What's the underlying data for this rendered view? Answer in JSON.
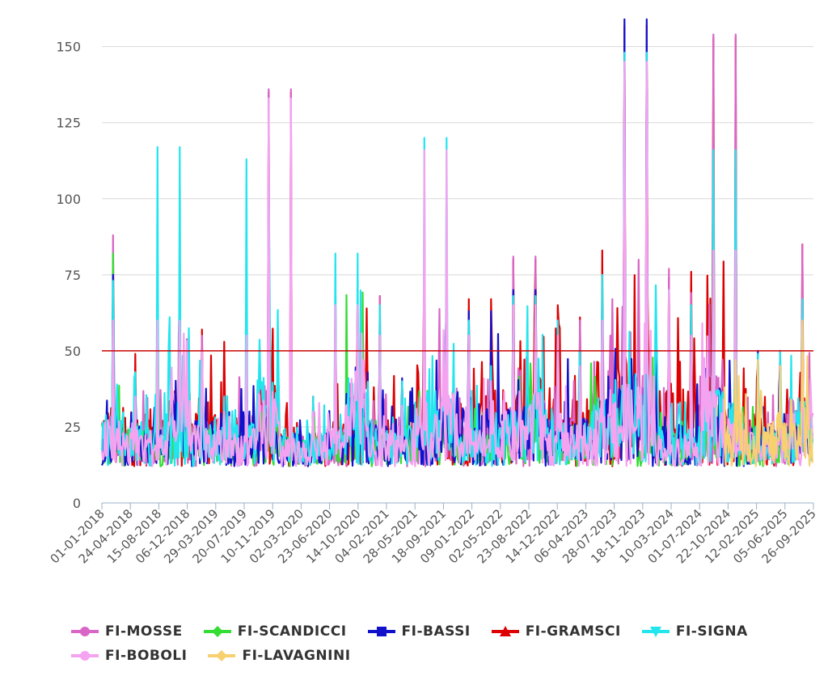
{
  "chart_data": {
    "type": "line",
    "title": "",
    "xlabel": "",
    "ylabel": "",
    "ylim": [
      0,
      160
    ],
    "yticks": [
      0,
      25,
      50,
      75,
      100,
      125,
      150
    ],
    "threshold": {
      "value": 50,
      "color": "#cc0000"
    },
    "x_tick_labels": [
      "01-01-2018",
      "24-04-2018",
      "15-08-2018",
      "06-12-2018",
      "29-03-2019",
      "20-07-2019",
      "10-11-2019",
      "02-03-2020",
      "23-06-2020",
      "14-10-2020",
      "04-02-2021",
      "28-05-2021",
      "18-09-2021",
      "09-01-2022",
      "02-05-2022",
      "23-08-2022",
      "14-12-2022",
      "06-04-2023",
      "28-07-2023",
      "18-11-2023",
      "10-03-2024",
      "01-07-2024",
      "22-10-2024",
      "12-02-2025",
      "05-06-2025",
      "26-09-2025"
    ],
    "period_months": [
      "2018-01",
      "2018-04",
      "2018-07",
      "2018-10",
      "2019-01",
      "2019-04",
      "2019-07",
      "2019-10",
      "2020-01",
      "2020-04",
      "2020-07",
      "2020-10",
      "2021-01",
      "2021-04",
      "2021-07",
      "2021-10",
      "2022-01",
      "2022-04",
      "2022-07",
      "2022-10",
      "2023-01",
      "2023-04",
      "2023-07",
      "2023-10",
      "2024-01",
      "2024-04",
      "2024-07",
      "2024-10",
      "2025-01",
      "2025-04",
      "2025-07",
      "2025-10",
      "2025-12"
    ],
    "series": [
      {
        "name": "FI-MOSSE",
        "color": "#d966c6",
        "values": [
          88,
          40,
          30,
          70,
          55,
          35,
          30,
          60,
          136,
          25,
          30,
          69,
          68,
          25,
          35,
          81,
          60,
          30,
          45,
          81,
          60,
          35,
          60,
          67,
          155,
          77,
          30,
          69,
          154,
          40,
          30,
          50,
          85
        ]
      },
      {
        "name": "FI-SCANDICCI",
        "color": "#33dd33",
        "values": [
          82,
          35,
          28,
          70,
          45,
          30,
          28,
          55,
          42,
          22,
          25,
          60,
          55,
          22,
          30,
          70,
          50,
          25,
          35,
          55,
          45,
          30,
          45,
          55,
          60,
          45,
          25,
          50,
          60,
          30,
          25,
          40,
          60
        ]
      },
      {
        "name": "FI-BASSI",
        "color": "#1111cc",
        "values": [
          75,
          40,
          30,
          60,
          50,
          35,
          30,
          55,
          40,
          25,
          30,
          60,
          55,
          41,
          35,
          65,
          55,
          63,
          45,
          70,
          55,
          35,
          50,
          70,
          159,
          60,
          30,
          60,
          80,
          50,
          30,
          45,
          60
        ]
      },
      {
        "name": "FI-GRAMSCI",
        "color": "#dd0000",
        "values": [
          80,
          49,
          42,
          52,
          57,
          53,
          38,
          60,
          135,
          25,
          35,
          69,
          68,
          30,
          40,
          80,
          52,
          67,
          62,
          80,
          65,
          61,
          52,
          83,
          157,
          74,
          58,
          76,
          153,
          45,
          35,
          50,
          85
        ]
      },
      {
        "name": "FI-SIGNA",
        "color": "#22e5ee",
        "values": [
          73,
          43,
          30,
          117,
          50,
          35,
          32,
          113,
          65,
          25,
          35,
          82,
          65,
          30,
          40,
          120,
          60,
          30,
          45,
          68,
          60,
          35,
          50,
          75,
          148,
          70,
          30,
          65,
          116,
          49,
          30,
          50,
          67
        ]
      },
      {
        "name": "FI-BOBOLI",
        "color": "#f5a3f0",
        "values": [
          60,
          35,
          28,
          60,
          50,
          30,
          28,
          55,
          133,
          22,
          30,
          65,
          55,
          22,
          32,
          116,
          55,
          28,
          40,
          65,
          55,
          30,
          45,
          60,
          145,
          70,
          25,
          55,
          83,
          35,
          25,
          45,
          55
        ]
      },
      {
        "name": "FI-LAVAGNINI",
        "color": "#f7d070",
        "values": [
          null,
          null,
          null,
          null,
          null,
          null,
          null,
          null,
          null,
          null,
          null,
          null,
          null,
          null,
          null,
          null,
          null,
          null,
          null,
          null,
          null,
          null,
          null,
          null,
          null,
          null,
          null,
          null,
          40,
          47,
          35,
          45,
          60
        ]
      }
    ]
  },
  "legend": {
    "items": [
      {
        "label": "FI-MOSSE",
        "color": "#d966c6",
        "marker": "circle"
      },
      {
        "label": "FI-SCANDICCI",
        "color": "#33dd33",
        "marker": "diamond"
      },
      {
        "label": "FI-BASSI",
        "color": "#1111cc",
        "marker": "square"
      },
      {
        "label": "FI-GRAMSCI",
        "color": "#dd0000",
        "marker": "triangle"
      },
      {
        "label": "FI-SIGNA",
        "color": "#22e5ee",
        "marker": "triangle-down"
      },
      {
        "label": "FI-BOBOLI",
        "color": "#f5a3f0",
        "marker": "circle"
      },
      {
        "label": "FI-LAVAGNINI",
        "color": "#f7d070",
        "marker": "diamond"
      }
    ]
  }
}
